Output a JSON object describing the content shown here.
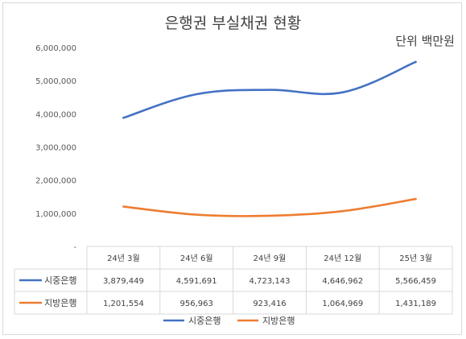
{
  "chart_data": {
    "type": "line",
    "title": "은행권 부실채권 현황",
    "unit": "단위 백만원",
    "categories": [
      "24년 3월",
      "24년 6월",
      "24년 9월",
      "24년 12월",
      "25년 3월"
    ],
    "series": [
      {
        "name": "시중은행",
        "color": "#4472c4",
        "values": [
          3879449,
          4591691,
          4723143,
          4646962,
          5566459
        ],
        "labels": [
          "3,879,449",
          "4,591,691",
          "4,723,143",
          "4,646,962",
          "5,566,459"
        ]
      },
      {
        "name": "지방은행",
        "color": "#ed7d31",
        "values": [
          1201554,
          956963,
          923416,
          1064969,
          1431189
        ],
        "labels": [
          "1,201,554",
          "956,963",
          "923,416",
          "1,064,969",
          "1,431,189"
        ]
      }
    ],
    "ylim": [
      0,
      6000000
    ],
    "yticks": [
      0,
      1000000,
      2000000,
      3000000,
      4000000,
      5000000,
      6000000
    ],
    "ytick_labels": [
      "-",
      "1,000,000",
      "2,000,000",
      "3,000,000",
      "4,000,000",
      "5,000,000",
      "6,000,000"
    ],
    "grid": false,
    "legend": "bottom",
    "data_table": true
  }
}
